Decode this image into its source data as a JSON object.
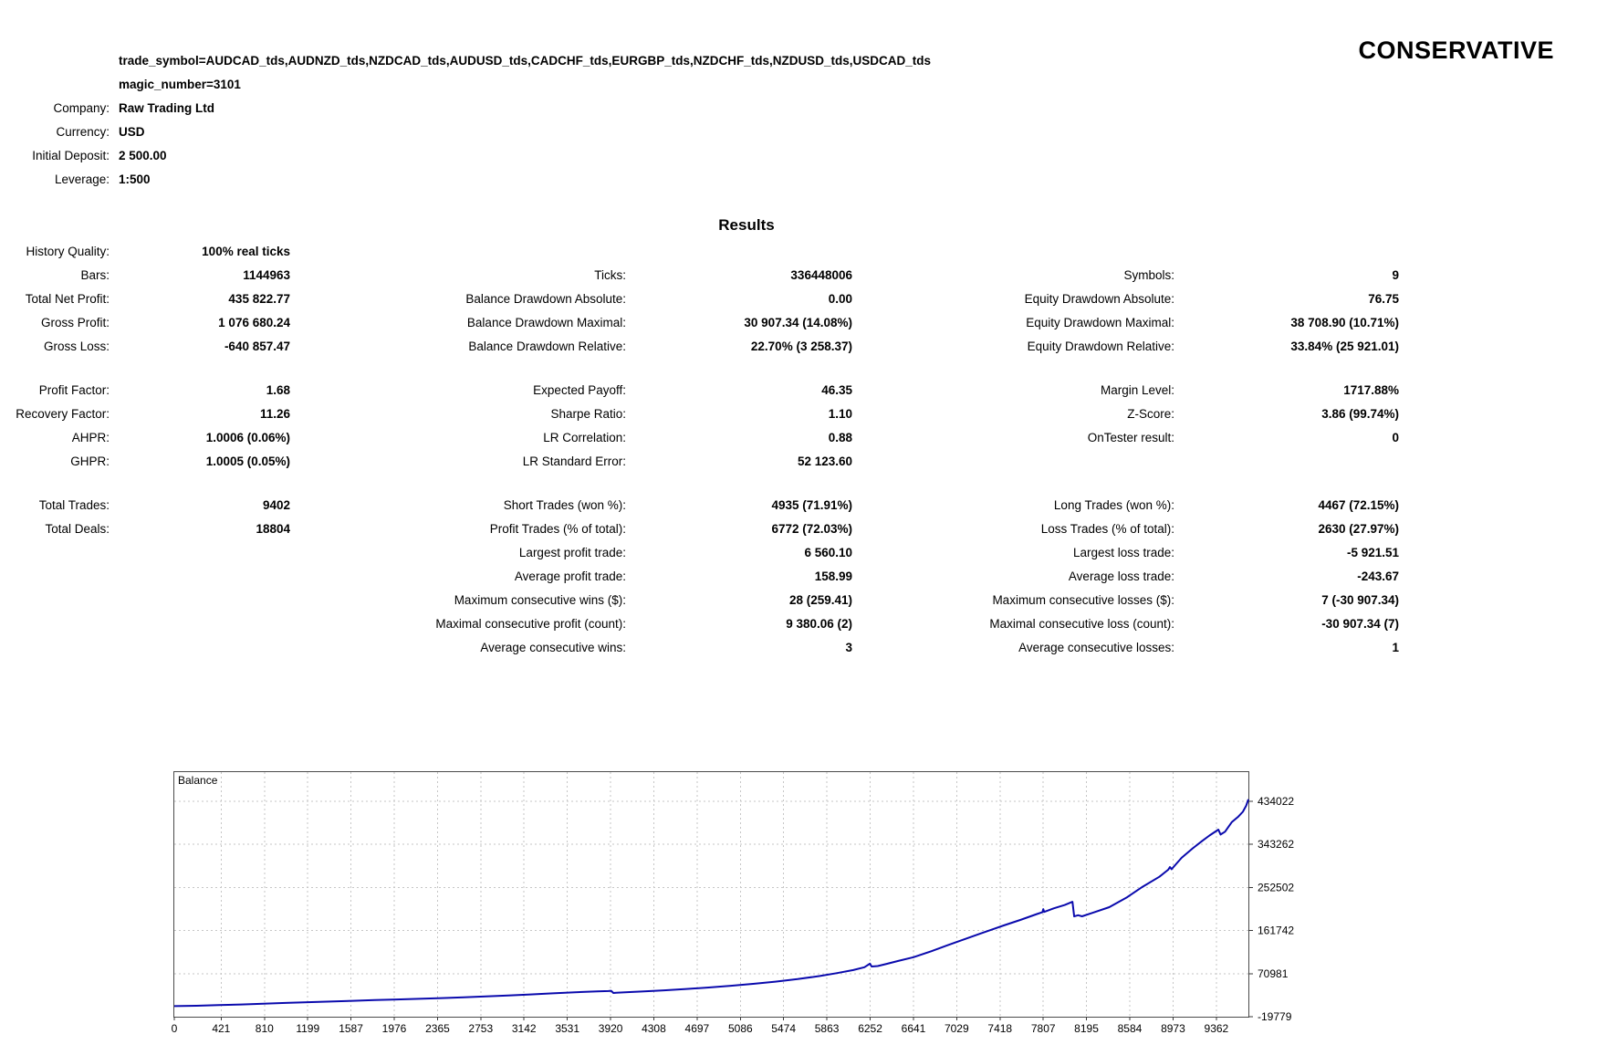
{
  "strategy_label": "CONSERVATIVE",
  "header": {
    "params": [
      "trade_symbol=AUDCAD_tds,AUDNZD_tds,NZDCAD_tds,AUDUSD_tds,CADCHF_tds,EURGBP_tds,NZDCHF_tds,NZDUSD_tds,USDCAD_tds",
      "magic_number=3101"
    ],
    "info": [
      {
        "label": "Company:",
        "value": "Raw Trading Ltd"
      },
      {
        "label": "Currency:",
        "value": "USD"
      },
      {
        "label": "Initial Deposit:",
        "value": "2 500.00"
      },
      {
        "label": "Leverage:",
        "value": "1:500"
      }
    ]
  },
  "results": {
    "title": "Results",
    "groups": [
      [
        [
          "History Quality:",
          "100% real ticks",
          "",
          "",
          "",
          ""
        ],
        [
          "Bars:",
          "1144963",
          "Ticks:",
          "336448006",
          "Symbols:",
          "9"
        ],
        [
          "Total Net Profit:",
          "435 822.77",
          "Balance Drawdown Absolute:",
          "0.00",
          "Equity Drawdown Absolute:",
          "76.75"
        ],
        [
          "Gross Profit:",
          "1 076 680.24",
          "Balance Drawdown Maximal:",
          "30 907.34 (14.08%)",
          "Equity Drawdown Maximal:",
          "38 708.90 (10.71%)"
        ],
        [
          "Gross Loss:",
          "-640 857.47",
          "Balance Drawdown Relative:",
          "22.70% (3 258.37)",
          "Equity Drawdown Relative:",
          "33.84% (25 921.01)"
        ]
      ],
      [
        [
          "Profit Factor:",
          "1.68",
          "Expected Payoff:",
          "46.35",
          "Margin Level:",
          "1717.88%"
        ],
        [
          "Recovery Factor:",
          "11.26",
          "Sharpe Ratio:",
          "1.10",
          "Z-Score:",
          "3.86 (99.74%)"
        ],
        [
          "AHPR:",
          "1.0006 (0.06%)",
          "LR Correlation:",
          "0.88",
          "OnTester result:",
          "0"
        ],
        [
          "GHPR:",
          "1.0005 (0.05%)",
          "LR Standard Error:",
          "52 123.60",
          "",
          ""
        ]
      ],
      [
        [
          "Total Trades:",
          "9402",
          "Short Trades (won %):",
          "4935 (71.91%)",
          "Long Trades (won %):",
          "4467 (72.15%)"
        ],
        [
          "Total Deals:",
          "18804",
          "Profit Trades (% of total):",
          "6772 (72.03%)",
          "Loss Trades (% of total):",
          "2630 (27.97%)"
        ],
        [
          "",
          "",
          "Largest profit trade:",
          "6 560.10",
          "Largest loss trade:",
          "-5 921.51"
        ],
        [
          "",
          "",
          "Average profit trade:",
          "158.99",
          "Average loss trade:",
          "-243.67"
        ],
        [
          "",
          "",
          "Maximum consecutive wins ($):",
          "28 (259.41)",
          "Maximum consecutive losses ($):",
          "7 (-30 907.34)"
        ],
        [
          "",
          "",
          "Maximal consecutive profit (count):",
          "9 380.06 (2)",
          "Maximal consecutive loss (count):",
          "-30 907.34 (7)"
        ],
        [
          "",
          "",
          "Average consecutive wins:",
          "3",
          "Average consecutive losses:",
          "1"
        ]
      ]
    ]
  },
  "chart_data": {
    "type": "line",
    "title": "Balance",
    "x_ticks": [
      0,
      421,
      810,
      1199,
      1587,
      1976,
      2365,
      2753,
      3142,
      3531,
      3920,
      4308,
      4697,
      5086,
      5474,
      5863,
      6252,
      6641,
      7029,
      7418,
      7807,
      8195,
      8584,
      8973,
      9362
    ],
    "y_ticks": [
      434022,
      343262,
      252502,
      161742,
      70981,
      -19779
    ],
    "x_range": [
      0,
      9650
    ],
    "y_range": [
      -19779,
      495564
    ],
    "grid": "dashed",
    "grid_color": "#c6c6c6",
    "axis_color": "#3a3a3a",
    "series": [
      {
        "name": "Balance",
        "color": "#0a0aad",
        "points": [
          [
            0,
            2500
          ],
          [
            200,
            3300
          ],
          [
            400,
            4600
          ],
          [
            600,
            6000
          ],
          [
            800,
            7600
          ],
          [
            1000,
            9200
          ],
          [
            1200,
            10700
          ],
          [
            1400,
            12200
          ],
          [
            1600,
            13700
          ],
          [
            1800,
            15200
          ],
          [
            2000,
            16600
          ],
          [
            2200,
            18000
          ],
          [
            2400,
            19400
          ],
          [
            2600,
            21000
          ],
          [
            2800,
            23000
          ],
          [
            3000,
            25000
          ],
          [
            3200,
            27200
          ],
          [
            3400,
            29500
          ],
          [
            3600,
            31700
          ],
          [
            3800,
            33500
          ],
          [
            3900,
            34300
          ],
          [
            3925,
            34800
          ],
          [
            3945,
            30200
          ],
          [
            3970,
            30800
          ],
          [
            4050,
            31500
          ],
          [
            4200,
            33200
          ],
          [
            4400,
            35800
          ],
          [
            4600,
            38600
          ],
          [
            4800,
            41800
          ],
          [
            5000,
            45400
          ],
          [
            5200,
            49400
          ],
          [
            5400,
            54000
          ],
          [
            5600,
            59500
          ],
          [
            5800,
            66000
          ],
          [
            5950,
            72000
          ],
          [
            6100,
            78500
          ],
          [
            6200,
            84500
          ],
          [
            6250,
            92000
          ],
          [
            6265,
            86000
          ],
          [
            6320,
            87000
          ],
          [
            6400,
            91500
          ],
          [
            6500,
            97500
          ],
          [
            6641,
            105500
          ],
          [
            6800,
            118000
          ],
          [
            6950,
            131000
          ],
          [
            7100,
            143500
          ],
          [
            7250,
            156000
          ],
          [
            7452,
            172500
          ],
          [
            7600,
            184000
          ],
          [
            7750,
            196500
          ],
          [
            7800,
            200500
          ],
          [
            7807,
            207000
          ],
          [
            7815,
            201000
          ],
          [
            7900,
            208500
          ],
          [
            8000,
            215500
          ],
          [
            8069,
            222400
          ],
          [
            8085,
            191500
          ],
          [
            8120,
            194000
          ],
          [
            8155,
            191800
          ],
          [
            8250,
            199000
          ],
          [
            8400,
            211000
          ],
          [
            8560,
            232000
          ],
          [
            8700,
            254000
          ],
          [
            8850,
            275000
          ],
          [
            8930,
            290000
          ],
          [
            8945,
            295500
          ],
          [
            8960,
            291000
          ],
          [
            9050,
            315000
          ],
          [
            9150,
            335000
          ],
          [
            9232,
            350000
          ],
          [
            9300,
            362000
          ],
          [
            9380,
            374500
          ],
          [
            9400,
            364000
          ],
          [
            9440,
            370000
          ],
          [
            9500,
            390000
          ],
          [
            9560,
            402000
          ],
          [
            9600,
            412000
          ],
          [
            9630,
            425000
          ],
          [
            9650,
            438323
          ]
        ]
      }
    ]
  }
}
